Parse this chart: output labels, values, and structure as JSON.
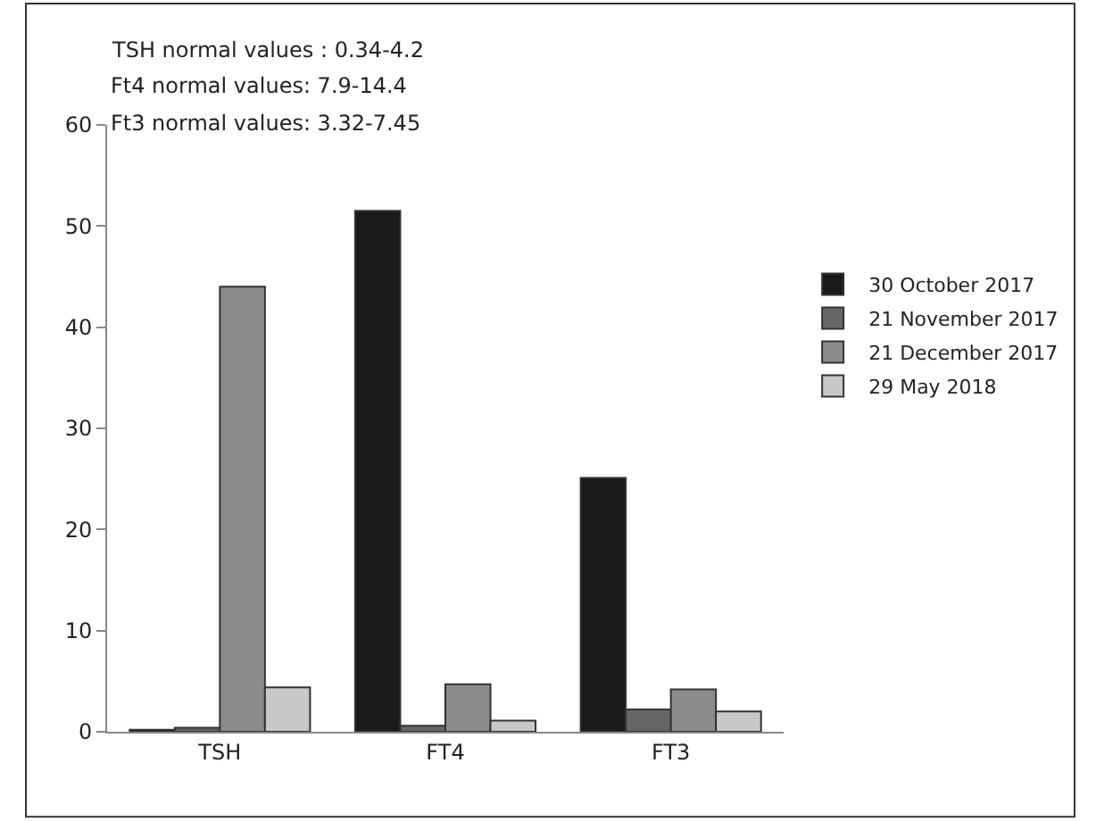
{
  "chart_data": {
    "type": "bar",
    "categories": [
      "TSH",
      "FT4",
      "FT3"
    ],
    "series": [
      {
        "name": "30 October 2017",
        "color": "#1a1a1a",
        "values": [
          0.2,
          51.5,
          25.1
        ]
      },
      {
        "name": "21 November 2017",
        "color": "#666666",
        "values": [
          0.4,
          0.6,
          2.2
        ]
      },
      {
        "name": "21 December 2017",
        "color": "#8c8c8c",
        "values": [
          44,
          4.7,
          4.2
        ]
      },
      {
        "name": "29 May 2018",
        "color": "#c8c8c8",
        "values": [
          4.4,
          1.1,
          2.0
        ]
      }
    ],
    "annotations": [
      "TSH normal values : 0.34-4.2",
      "Ft4 normal values: 7.9-14.4",
      "Ft3 normal values: 3.32-7.45"
    ],
    "ylim": [
      0,
      60
    ],
    "yticks": [
      0,
      10,
      20,
      30,
      40,
      50,
      60
    ],
    "legend": "right"
  }
}
